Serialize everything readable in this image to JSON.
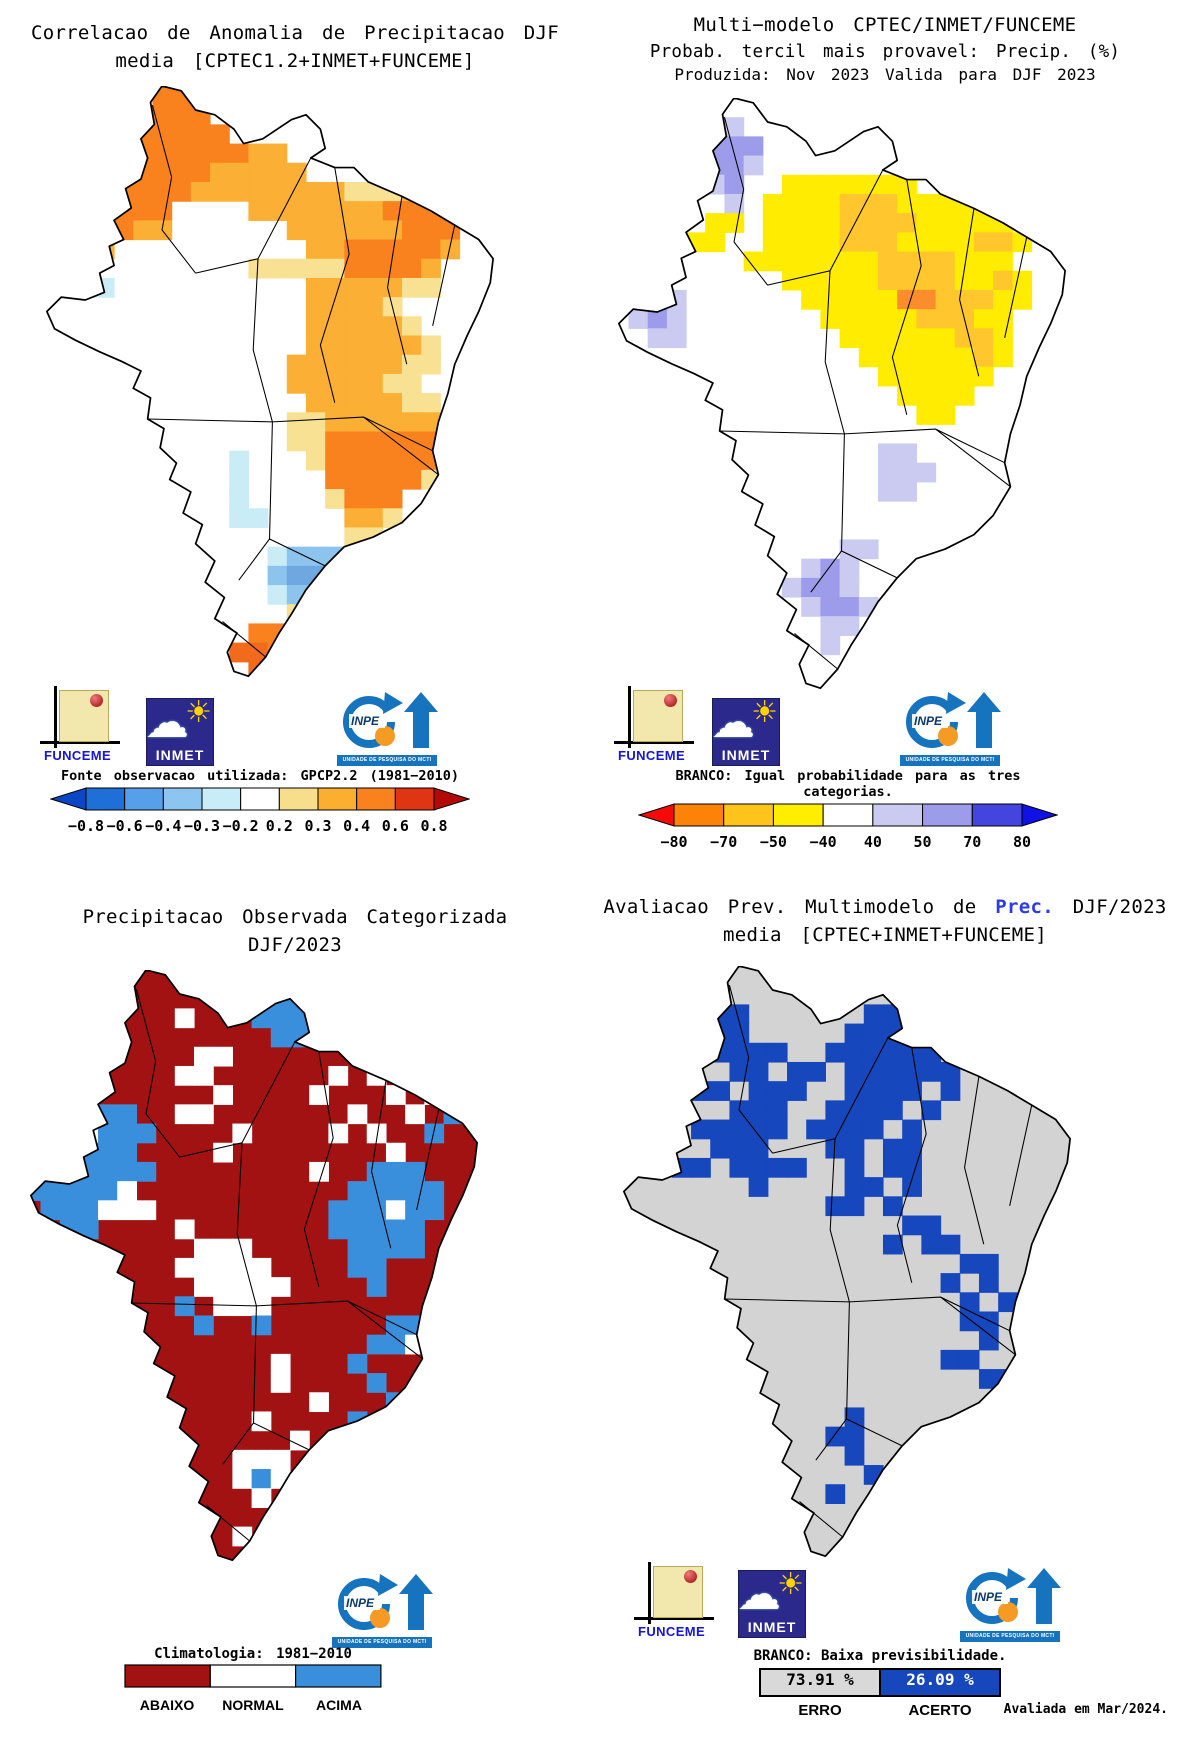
{
  "logos": {
    "funceme": "FUNCEME",
    "inmet": "INMET",
    "inpe": "INPE",
    "inpe_banner": "UNIDADE DE PESQUISA DO MCTI"
  },
  "panel1": {
    "title1": "Correlacao de Anomalia de Precipitacao DJF",
    "title2": "media [CPTEC1.2+INMET+FUNCEME]",
    "colorbar": {
      "label": "Fonte observacao utilizada: GPCP2.2 (1981−2010)",
      "ticks": [
        "−0.8",
        "−0.6",
        "−0.4",
        "−0.3",
        "−0.2",
        "0.2",
        "0.3",
        "0.4",
        "0.6",
        "0.8"
      ],
      "segments": [
        "#1E6FD8",
        "#55A0E8",
        "#8CC6F0",
        "#C9EDF8",
        "#FFFFFF",
        "#F6DE8C",
        "#FBAE2F",
        "#F9821E",
        "#E03515"
      ],
      "left_arrow": "#0B47C4",
      "right_arrow": "#B40A05"
    },
    "map": {
      "fill": "#FFFFFF",
      "palette": {
        "O": "#F9821E",
        "o": "#FBAF34",
        "y": "#F8E192",
        "c": "#C9ECF6",
        "b": "#8CC4EE",
        "B": "#6FA8E0",
        "R": "#F26A1B"
      },
      "grid": [
        ".......OO................",
        ".....OOOOO...............",
        "....OOOOOOO..............",
        "..OOOOOOOOOOoo...........",
        ".OOOOOOOOOooooo..........",
        ".OOOOOOOOooooooooyyyoo...",
        ".OOOOOOO....oooooooOOOO..",
        ".OOOOOoo......ooooooOOO..",
        "..ooo..........ooOOOOOo..",
        "..oo........yyyyyOOOOo...",
        "...cc..........oooooyy...",
        "...............ooooy.....",
        "...............oooooy....",
        "...............ooooooy...",
        "..............ooooooyy...",
        "..............oooooyy....",
        "...............oooooyy...",
        "..............yyoooooo...",
        "..............yyOOOOOOy..",
        "...........c...yOOOOOO...",
        "...........c....OOOOOy...",
        "...........c....yOOO.....",
        "...........cc....ooy.....",
        ".................yy......",
        ".............cbbbbc......",
        ".............bBBbbc......",
        ".............cbbbbc......",
        "..............ycc........",
        "............OOyO.........",
        "...........RROOO.........",
        "............RRO.........."
      ]
    }
  },
  "panel2": {
    "title1": "Multi−modelo CPTEC/INMET/FUNCEME",
    "title2": "Probab. tercil mais provavel: Precip. (%)",
    "title3": "Produzida: Nov 2023  Valida para DJF 2023",
    "colorbar": {
      "label": "BRANCO: Igual probabilidade para as tres categorias.",
      "ticks": [
        "−80",
        "−70",
        "−50",
        "−40",
        "40",
        "50",
        "70",
        "80"
      ],
      "segments": [
        "#FC8208",
        "#FFC41C",
        "#FFEE00",
        "#FFFFFF",
        "#CBCBF2",
        "#9C9CEA",
        "#4444DF"
      ],
      "left_arrow": "#F60909",
      "right_arrow": "#1111E6"
    },
    "map": {
      "fill": "#FFFFFF",
      "palette": {
        "Y": "#FFEC00",
        "g": "#FFC62E",
        "l": "#CBCBF2",
        "L": "#9C9CEA",
        "o": "#FB8D2D"
      },
      "grid": [
        ".........................",
        "......ll.................",
        ".....lLLL................",
        "......LLl................",
        "......lL..YYYYYYY........",
        "...YY..l.YYYYgggYYYYY....",
        "..YYY.YY.YYYYggggYYYYY...",
        ".....YY..YYYYgggYYYYggY..",
        "........YYYYYYYggggYYY...",
        "..........YYYYYggggYYgY..",
        "...ll......YYYYYoogggYY..",
        "..lLl.......YYYYYgggYY...",
        "...ll........YYYYYYggY...",
        "..............YYYYYYgY...",
        "...............YYYYYY....",
        "................YYYY.....",
        ".................YY......",
        ".........................",
        "...............ll........",
        "...............lll.......",
        "...............ll........",
        ".........................",
        ".........................",
        ".............ll..........",
        "...........lLl...........",
        "..........lLLl...........",
        "...........lLLl..........",
        "............ll...........",
        "............l............",
        ".........................",
        "........................."
      ]
    }
  },
  "panel3": {
    "title1": "Precipitacao Observada Categorizada",
    "title2": "DJF/2023",
    "colorbar": {
      "label": "Climatologia: 1981−2010",
      "segments": [
        "#A31212",
        "#FFFFFF",
        "#3A8FDD"
      ],
      "labels": [
        "ABAIXO",
        "NORMAL",
        "ACIMA"
      ]
    },
    "map": {
      "fill": "#A31212",
      "palette": {
        "w": "#FFFFFF",
        "b": "#3A8FDD"
      },
      "grid": [
        ".............bb..........",
        "...........w.bbb.........",
        ".........w...bbb.........",
        "..............bb.........",
        "..........ww.............",
        ".........ww......w.w.....",
        "...bb......w....w...w.w..",
        "..bbbbb..ww.......w..w.b.",
        ".bbbwbbb....w....w.w..b..",
        "bbbwbbb....w........w....",
        "bbbbbbbb........w..bbb...",
        ".bbbbbw...........bbbbb..",
        "..bbbwww.........bbbwbb..",
        "...bb....w.......bbbbb...",
        "..........www.....bbbb...",
        ".........wwwww....bb.....",
        "..........wwwww....b.....",
        ".........b.www...........",
        "..........b..b......bb...",
        "...................bbw...",
        "..............w...b......",
        "..............w....b.....",
        "................w...b....",
        ".............w....b......",
        "...............w.........",
        "............www..........",
        "............wbw..........",
        ".............w...........",
        ".........................",
        "............w............",
        "........................."
      ]
    }
  },
  "panel4": {
    "title1a": "Avaliacao Prev. Multimodelo de ",
    "title1b": "Prec.",
    "title1c": " DJF/2023",
    "title2": "media [CPTEC+INMET+FUNCEME]",
    "accent": "#2B3BE8",
    "note": "BRANCO: Baixa previsibilidade.",
    "score": {
      "erro_value": "73.91 %",
      "acerto_value": "26.09 %",
      "erro_label": "ERRO",
      "acerto_label": "ACERTO",
      "erro_color": "#D9D9D9",
      "acerto_color": "#1747BC"
    },
    "footer": "Avaliada em Mar/2024.",
    "map": {
      "fill": "#D3D3D3",
      "palette": {
        "b": "#1747BC"
      },
      "grid": [
        ".........................",
        "......b..................",
        ".....bbb......bb.........",
        "....bbbb.....bbbbb.......",
        ".....bbbbb..bbbbbb.......",
        ".......bb.bb.bbbbbb......",
        ".....bb.bbb..bbbb.b......",
        "...bb..bbb..bbbb.b.......",
        ".....bbbbb.bbbb.b........",
        ".bb...bbb...bb.bb........",
        ".bb.bb.bbbb..b.bb........",
        "........b....bb.b........",
        "............bb.b.........",
        "................bb.......",
        "...............b.bb......",
        "...................bb....",
        "..................b.b....",
        "...................b.b...",
        "...................bb....",
        "....................b....",
        "..................bb.....",
        "....................bb...",
        ".........................",
        ".............b...........",
        "............bb...........",
        ".............b...........",
        "..............b..........",
        "............b............",
        ".........................",
        ".........................",
        "........................."
      ]
    }
  }
}
